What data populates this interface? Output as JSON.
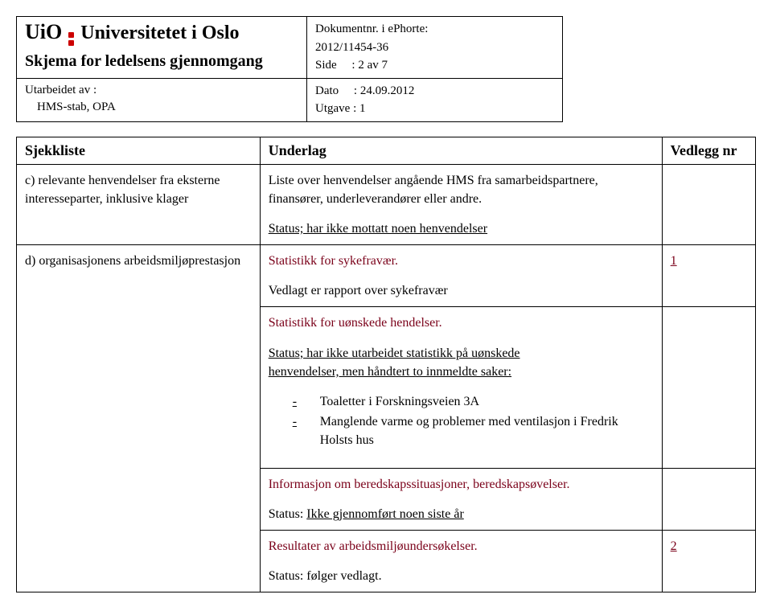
{
  "header": {
    "institution_abbr": "UiO",
    "institution_name": "Universitetet i Oslo",
    "form_title": "Skjema for ledelsens gjennomgang",
    "author_label": "Utarbeidet av :",
    "author_value": "HMS-stab, OPA",
    "docnr_label": "Dokumentnr. i ePhorte:",
    "docnr_value": "2012/11454-36",
    "side_label": "Side",
    "side_value": ": 2 av 7",
    "dato_label": "Dato",
    "dato_value": ": 24.09.2012",
    "utgave_label": "Utgave",
    "utgave_value": ": 1"
  },
  "table": {
    "h1": "Sjekkliste",
    "h2": "Underlag",
    "h3": "Vedlegg nr",
    "row_c": {
      "left": "c) relevante henvendelser fra eksterne interesseparter, inklusive klager",
      "r1": "Liste over henvendelser angående HMS fra samarbeidspartnere, finansører, underleverandører eller andre.",
      "r2": "Status; har ikke mottatt noen henvendelser"
    },
    "row_d": {
      "left": "d) organisasjonens arbeidsmiljøprestasjon",
      "b1_p1": "Statistikk for sykefravær.",
      "b1_p2": "Vedlagt er rapport over sykefravær",
      "b1_v": "1",
      "b2_p1": "Statistikk for uønskede hendelser.",
      "b2_p2a": "Status; har ikke utarbeidet statistikk på uønskede",
      "b2_p2b": "henvendelser, men håndtert to innmeldte saker:",
      "b2_li1": "Toaletter i Forskningsveien 3A",
      "b2_li2": "Manglende varme og problemer med ventilasjon i Fredrik Holsts hus",
      "b3_p1": "Informasjon om beredskapssituasjoner, beredskapsøvelser.",
      "b3_p2_a": "Status: ",
      "b3_p2_b": "Ikke gjennomført noen siste år",
      "b4_p1": "Resultater av arbeidsmiljøundersøkelser.",
      "b4_p2": "Status: følger vedlagt.",
      "b4_v": "2"
    }
  }
}
